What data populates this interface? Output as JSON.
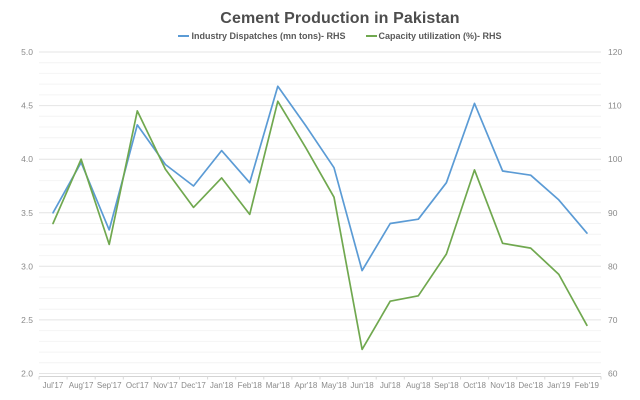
{
  "chart": {
    "title": "Cement Production in Pakistan",
    "legend": [
      {
        "label": "Industry Dispatches (mn tons)- RHS",
        "color": "#5b9bd5"
      },
      {
        "label": "Capacity utilization (%)- RHS",
        "color": "#70a84f"
      }
    ]
  },
  "chart_data": {
    "type": "line",
    "title": "Cement Production in Pakistan",
    "categories": [
      "Jul'17",
      "Aug'17",
      "Sep'17",
      "Oct'17",
      "Nov'17",
      "Dec'17",
      "Jan'18",
      "Feb'18",
      "Mar'18",
      "Apr'18",
      "May'18",
      "Jun'18",
      "Jul'18",
      "Aug'18",
      "Sep'18",
      "Oct'18",
      "Nov'18",
      "Dec'18",
      "Jan'19",
      "Feb'19"
    ],
    "series": [
      {
        "name": "Industry Dispatches (mn tons)- RHS",
        "axis": "left",
        "color": "#5b9bd5",
        "values": [
          3.5,
          3.97,
          3.34,
          4.32,
          3.95,
          3.75,
          4.08,
          3.78,
          4.68,
          4.31,
          3.92,
          2.96,
          3.4,
          3.44,
          3.78,
          4.52,
          3.89,
          3.85,
          3.62,
          3.31
        ]
      },
      {
        "name": "Capacity utilization (%)- RHS",
        "axis": "right",
        "color": "#70a84f",
        "values": [
          88.0,
          100.0,
          84.1,
          109.0,
          98.1,
          91.0,
          96.5,
          89.7,
          110.8,
          102.1,
          92.9,
          64.5,
          73.5,
          74.5,
          82.3,
          98.0,
          84.3,
          83.4,
          78.5,
          69.0
        ]
      }
    ],
    "left_axis": {
      "min": 2.0,
      "max": 5.0,
      "tick_labels": [
        "5.0",
        "4.5",
        "4.0",
        "3.5",
        "3.0",
        "2.5",
        "2.0"
      ],
      "tick_values": [
        5.0,
        4.5,
        4.0,
        3.5,
        3.0,
        2.5,
        2.0
      ]
    },
    "right_axis": {
      "min": 60,
      "max": 120,
      "tick_labels": [
        "120",
        "110",
        "100",
        "90",
        "80",
        "70",
        "60"
      ],
      "tick_values": [
        120,
        110,
        100,
        90,
        80,
        70,
        60
      ]
    },
    "grid": {
      "major_step_left": 0.5,
      "minor_step_left": 0.1,
      "horizontal_only": true
    },
    "legend_position": "top",
    "colors": {
      "major_grid": "#e4e4e4",
      "minor_grid": "#f4f4f4",
      "axis_line": "#d4d4d4",
      "tick": "#d8d8d8",
      "axis_text": "#8a8a8a",
      "title_text": "#4d4d4d"
    }
  }
}
